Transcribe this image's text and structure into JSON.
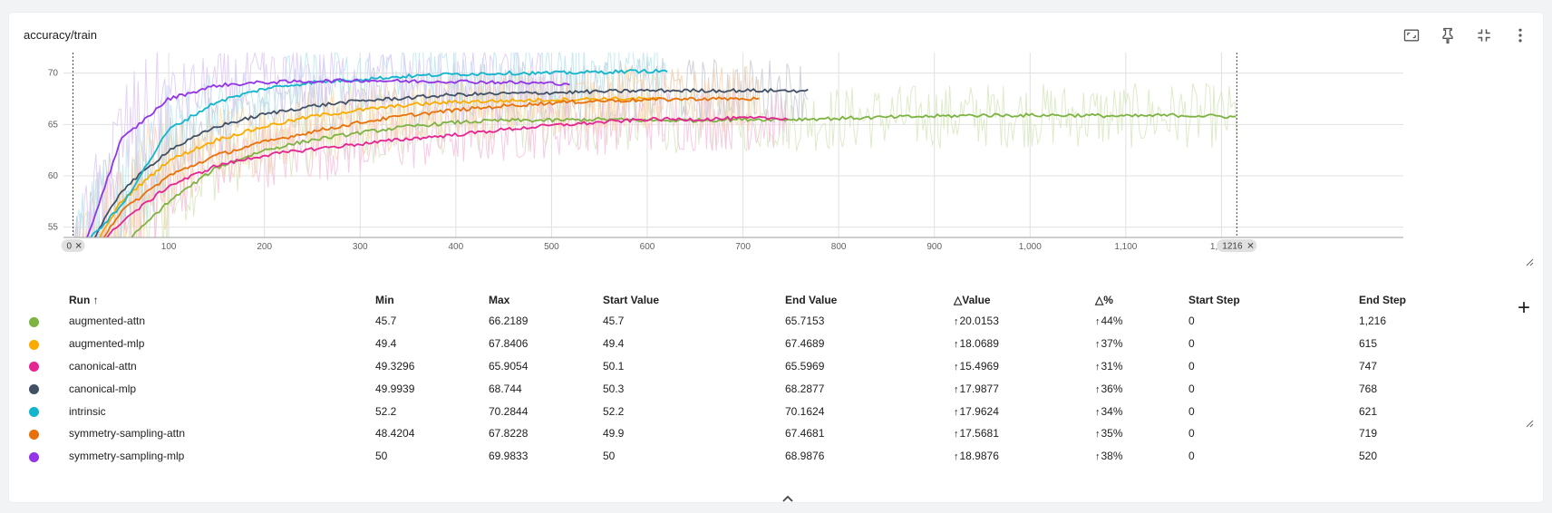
{
  "card": {
    "title": "accuracy/train",
    "toolbar": {
      "fit_icon": "fit-domain-icon",
      "pin_icon": "pin-icon",
      "collapse_icon": "collapse-icon",
      "more_icon": "more-vert-icon"
    }
  },
  "chart_data": {
    "type": "line",
    "x_ticks": [
      "0",
      "100",
      "200",
      "300",
      "400",
      "500",
      "600",
      "700",
      "800",
      "900",
      "1,000",
      "1,100",
      "1,200"
    ],
    "y_ticks": [
      "55",
      "60",
      "65",
      "70"
    ],
    "xlim": [
      -10,
      1390
    ],
    "ylim": [
      54,
      72
    ],
    "range_start_label": "0",
    "range_end_label": "1216",
    "series": [
      {
        "name": "augmented-attn",
        "color": "#7cb342",
        "raw_color": "#d7e8c0",
        "x": [
          0,
          50,
          100,
          150,
          200,
          250,
          300,
          350,
          400,
          450,
          500,
          550,
          600,
          650,
          700,
          750,
          800,
          850,
          900,
          950,
          1000,
          1050,
          1100,
          1150,
          1200,
          1216
        ],
        "y": [
          45.7,
          53.0,
          57.5,
          60.8,
          62.5,
          63.5,
          64.2,
          64.8,
          65.2,
          65.4,
          65.4,
          65.5,
          65.4,
          65.4,
          65.5,
          65.5,
          65.6,
          65.7,
          65.8,
          65.9,
          65.9,
          65.9,
          65.8,
          65.9,
          65.8,
          65.7153
        ]
      },
      {
        "name": "augmented-mlp",
        "color": "#f9ab00",
        "raw_color": "#fde3a7",
        "x": [
          0,
          50,
          100,
          150,
          200,
          250,
          300,
          350,
          400,
          450,
          500,
          550,
          600,
          615
        ],
        "y": [
          49.4,
          57.5,
          61.5,
          63.5,
          64.8,
          65.8,
          66.4,
          66.9,
          67.2,
          67.3,
          67.4,
          67.5,
          67.5,
          67.4689
        ]
      },
      {
        "name": "canonical-attn",
        "color": "#e52592",
        "raw_color": "#f8bfe0",
        "x": [
          0,
          50,
          100,
          150,
          200,
          250,
          300,
          350,
          400,
          450,
          500,
          550,
          600,
          650,
          700,
          747
        ],
        "y": [
          50.1,
          55.5,
          59.0,
          61.0,
          62.0,
          62.6,
          63.1,
          63.6,
          64.0,
          64.5,
          64.9,
          65.2,
          65.5,
          65.5,
          65.6,
          65.5969
        ]
      },
      {
        "name": "canonical-mlp",
        "color": "#425066",
        "raw_color": "#c5cad5",
        "x": [
          0,
          50,
          100,
          150,
          200,
          250,
          300,
          350,
          400,
          450,
          500,
          550,
          600,
          650,
          700,
          768
        ],
        "y": [
          50.3,
          58.5,
          62.5,
          64.8,
          66.0,
          66.8,
          67.3,
          67.6,
          67.9,
          68.0,
          68.1,
          68.2,
          68.3,
          68.3,
          68.3,
          68.2877
        ]
      },
      {
        "name": "intrinsic",
        "color": "#12b5cb",
        "raw_color": "#b7e8f0",
        "x": [
          0,
          50,
          100,
          150,
          200,
          250,
          300,
          350,
          400,
          450,
          500,
          550,
          600,
          621
        ],
        "y": [
          52.2,
          57.0,
          64.5,
          67.2,
          68.5,
          69.1,
          69.4,
          69.7,
          69.9,
          70.0,
          70.0,
          70.1,
          70.2,
          70.1624
        ]
      },
      {
        "name": "symmetry-sampling-attn",
        "color": "#e8710a",
        "raw_color": "#f9d2b0",
        "x": [
          0,
          50,
          100,
          150,
          200,
          250,
          300,
          350,
          400,
          450,
          500,
          550,
          600,
          650,
          700,
          719
        ],
        "y": [
          49.9,
          56.5,
          60.0,
          62.0,
          63.3,
          64.3,
          65.2,
          65.9,
          66.4,
          66.8,
          67.1,
          67.3,
          67.4,
          67.5,
          67.5,
          67.4681
        ]
      },
      {
        "name": "symmetry-sampling-mlp",
        "color": "#9334e6",
        "raw_color": "#e0c9f7",
        "x": [
          0,
          50,
          100,
          150,
          200,
          250,
          300,
          350,
          400,
          450,
          500,
          520
        ],
        "y": [
          50.0,
          63.5,
          67.5,
          68.8,
          69.1,
          69.2,
          69.3,
          69.2,
          69.2,
          69.1,
          69.0,
          68.9876
        ]
      }
    ]
  },
  "table": {
    "headers": [
      "Run ↑",
      "Min",
      "Max",
      "Start Value",
      "End Value",
      "△Value",
      "△%",
      "Start Step",
      "End Step"
    ],
    "rows": [
      {
        "color": "#7cb342",
        "run": "augmented-attn",
        "min": "45.7",
        "max": "66.2189",
        "start_value": "45.7",
        "end_value": "65.7153",
        "delta_value": "20.0153",
        "delta_pct": "44%",
        "start_step": "0",
        "end_step": "1,216"
      },
      {
        "color": "#f9ab00",
        "run": "augmented-mlp",
        "min": "49.4",
        "max": "67.8406",
        "start_value": "49.4",
        "end_value": "67.4689",
        "delta_value": "18.0689",
        "delta_pct": "37%",
        "start_step": "0",
        "end_step": "615"
      },
      {
        "color": "#e52592",
        "run": "canonical-attn",
        "min": "49.3296",
        "max": "65.9054",
        "start_value": "50.1",
        "end_value": "65.5969",
        "delta_value": "15.4969",
        "delta_pct": "31%",
        "start_step": "0",
        "end_step": "747"
      },
      {
        "color": "#425066",
        "run": "canonical-mlp",
        "min": "49.9939",
        "max": "68.744",
        "start_value": "50.3",
        "end_value": "68.2877",
        "delta_value": "17.9877",
        "delta_pct": "36%",
        "start_step": "0",
        "end_step": "768"
      },
      {
        "color": "#12b5cb",
        "run": "intrinsic",
        "min": "52.2",
        "max": "70.2844",
        "start_value": "52.2",
        "end_value": "70.1624",
        "delta_value": "17.9624",
        "delta_pct": "34%",
        "start_step": "0",
        "end_step": "621"
      },
      {
        "color": "#e8710a",
        "run": "symmetry-sampling-attn",
        "min": "48.4204",
        "max": "67.8228",
        "start_value": "49.9",
        "end_value": "67.4681",
        "delta_value": "17.5681",
        "delta_pct": "35%",
        "start_step": "0",
        "end_step": "719"
      },
      {
        "color": "#9334e6",
        "run": "symmetry-sampling-mlp",
        "min": "50",
        "max": "69.9833",
        "start_value": "50",
        "end_value": "68.9876",
        "delta_value": "18.9876",
        "delta_pct": "38%",
        "start_step": "0",
        "end_step": "520"
      }
    ]
  },
  "icons": {
    "add_column": "add-icon",
    "expand_less": "chevron-up-icon",
    "delta_arrow": "arrow-up-icon"
  }
}
